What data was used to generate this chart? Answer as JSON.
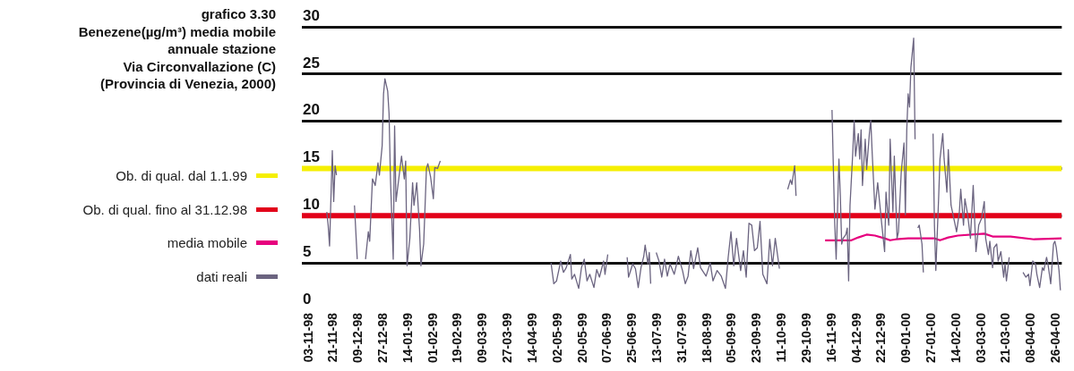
{
  "chart_data": {
    "type": "line",
    "title": "grafico 3.30",
    "subtitle": "Benezene(µg/m³) media mobile\nannuale stazione\nVia Circonvallazione (C)\n(Provincia di Venezia, 2000)",
    "xlim": [
      "1998-10-29",
      "2000-04-30"
    ],
    "xticks": [
      {
        "value": "1998-11-03",
        "label": "03-11-98"
      },
      {
        "value": "1998-11-21",
        "label": "21-11-98"
      },
      {
        "value": "1998-12-09",
        "label": "09-12-98"
      },
      {
        "value": "1998-12-27",
        "label": "27-12-98"
      },
      {
        "value": "1999-01-14",
        "label": "14-01-99"
      },
      {
        "value": "1999-02-01",
        "label": "01-02-99"
      },
      {
        "value": "1999-02-19",
        "label": "19-02-99"
      },
      {
        "value": "1999-03-09",
        "label": "09-03-99"
      },
      {
        "value": "1999-03-27",
        "label": "27-03-99"
      },
      {
        "value": "1999-04-14",
        "label": "14-04-99"
      },
      {
        "value": "1999-05-02",
        "label": "02-05-99"
      },
      {
        "value": "1999-05-20",
        "label": "20-05-99"
      },
      {
        "value": "1999-06-07",
        "label": "07-06-99"
      },
      {
        "value": "1999-06-25",
        "label": "25-06-99"
      },
      {
        "value": "1999-07-13",
        "label": "13-07-99"
      },
      {
        "value": "1999-07-31",
        "label": "31-07-99"
      },
      {
        "value": "1999-08-18",
        "label": "18-08-99"
      },
      {
        "value": "1999-09-05",
        "label": "05-09-99"
      },
      {
        "value": "1999-09-23",
        "label": "23-09-99"
      },
      {
        "value": "1999-10-11",
        "label": "11-10-99"
      },
      {
        "value": "1999-10-29",
        "label": "29-10-99"
      },
      {
        "value": "1999-11-16",
        "label": "16-11-99"
      },
      {
        "value": "1999-12-04",
        "label": "04-12-99"
      },
      {
        "value": "1999-12-22",
        "label": "22-12-99"
      },
      {
        "value": "2000-01-09",
        "label": "09-01-00"
      },
      {
        "value": "2000-01-27",
        "label": "27-01-00"
      },
      {
        "value": "2000-02-14",
        "label": "14-02-00"
      },
      {
        "value": "2000-03-03",
        "label": "03-03-00"
      },
      {
        "value": "2000-03-21",
        "label": "21-03-00"
      },
      {
        "value": "2000-04-08",
        "label": "08-04-00"
      },
      {
        "value": "2000-04-26",
        "label": "26-04-00"
      }
    ],
    "ylim": [
      0,
      30
    ],
    "yticks": [
      0,
      5,
      10,
      15,
      20,
      25,
      30
    ],
    "grid": "y",
    "legend": "left",
    "series": [
      {
        "name": "Ob. di qual. dal 1.1.99",
        "color": "#f5ef00",
        "x": [
          "1998-10-29",
          "2000-04-30"
        ],
        "values": [
          15,
          15
        ]
      },
      {
        "name": "Ob. di qual. fino al 31.12.98",
        "color": "#e2001a",
        "x": [
          "1998-10-29",
          "2000-04-30"
        ],
        "values": [
          10,
          10
        ]
      },
      {
        "name": "media mobile",
        "color": "#e6007e",
        "x": [
          "1999-11-11",
          "1999-11-30",
          "1999-12-05",
          "1999-12-11",
          "1999-12-17",
          "1999-12-24",
          "1999-12-28",
          "2000-01-01",
          "2000-01-10",
          "2000-01-29",
          "2000-02-02",
          "2000-02-08",
          "2000-02-15",
          "2000-03-05",
          "2000-03-11",
          "2000-03-24",
          "2000-04-10",
          "2000-04-30"
        ],
        "values": [
          7.4,
          7.4,
          7.7,
          8.0,
          7.9,
          7.6,
          7.4,
          7.5,
          7.6,
          7.6,
          7.4,
          7.7,
          7.9,
          8.1,
          7.8,
          7.8,
          7.5,
          7.6
        ]
      },
      {
        "name": "dati reali",
        "color": "#6b6480",
        "x": [
          "1998-11-16",
          "1998-11-17",
          "1998-11-18",
          "1998-11-20",
          "1998-11-21",
          "1998-11-22",
          "1998-11-23",
          "1998-11-27",
          "1998-12-06",
          "1998-12-08",
          "1998-12-11",
          "1998-12-14",
          "1998-12-16",
          "1998-12-17",
          "1998-12-19",
          "1998-12-21",
          "1998-12-23",
          "1998-12-24",
          "1998-12-26",
          "1998-12-27",
          "1998-12-28",
          "1998-12-30",
          "1998-12-31",
          "1999-01-01",
          "1999-01-03",
          "1999-01-04",
          "1999-01-05",
          "1999-01-07",
          "1999-01-09",
          "1999-01-11",
          "1999-01-12",
          "1999-01-13",
          "1999-01-15",
          "1999-01-17",
          "1999-01-18",
          "1999-01-20",
          "1999-01-22",
          "1999-01-23",
          "1999-01-25",
          "1999-01-27",
          "1999-01-28",
          "1999-01-30",
          "1999-02-01",
          "1999-02-02",
          "1999-02-04",
          "1999-02-06",
          "1999-03-13",
          "1999-04-27",
          "1999-04-29",
          "1999-05-01",
          "1999-05-04",
          "1999-05-06",
          "1999-05-08",
          "1999-05-11",
          "1999-05-12",
          "1999-05-14",
          "1999-05-17",
          "1999-05-19",
          "1999-05-21",
          "1999-05-23",
          "1999-05-25",
          "1999-05-28",
          "1999-05-30",
          "1999-06-01",
          "1999-06-04",
          "1999-06-05",
          "1999-06-07",
          "1999-06-11",
          "1999-06-21",
          "1999-06-22",
          "1999-06-25",
          "1999-06-27",
          "1999-06-29",
          "1999-07-01",
          "1999-07-03",
          "1999-07-04",
          "1999-07-06",
          "1999-07-07",
          "1999-07-08",
          "1999-07-10",
          "1999-07-12",
          "1999-07-14",
          "1999-07-16",
          "1999-07-18",
          "1999-07-20",
          "1999-07-22",
          "1999-07-25",
          "1999-07-28",
          "1999-07-31",
          "1999-08-02",
          "1999-08-04",
          "1999-08-06",
          "1999-08-08",
          "1999-08-11",
          "1999-08-13",
          "1999-08-17",
          "1999-08-20",
          "1999-08-22",
          "1999-08-25",
          "1999-08-28",
          "1999-08-31",
          "1999-09-02",
          "1999-09-04",
          "1999-09-06",
          "1999-09-08",
          "1999-09-11",
          "1999-09-13",
          "1999-09-15",
          "1999-09-17",
          "1999-09-19",
          "1999-09-21",
          "1999-09-23",
          "1999-09-25",
          "1999-09-27",
          "1999-09-30",
          "1999-10-02",
          "1999-10-04",
          "1999-10-06",
          "1999-10-09",
          "1999-10-12",
          "1999-10-15",
          "1999-10-17",
          "1999-10-18",
          "1999-10-20",
          "1999-10-21",
          "1999-10-25",
          "1999-11-16",
          "1999-11-17",
          "1999-11-18",
          "1999-11-19",
          "1999-11-21",
          "1999-11-22",
          "1999-11-23",
          "1999-11-24",
          "1999-11-26",
          "1999-11-27",
          "1999-11-28",
          "1999-11-29",
          "1999-12-01",
          "1999-12-02",
          "1999-12-03",
          "1999-12-05",
          "1999-12-06",
          "1999-12-07",
          "1999-12-08",
          "1999-12-10",
          "1999-12-11",
          "1999-12-13",
          "1999-12-14",
          "1999-12-15",
          "1999-12-17",
          "1999-12-18",
          "1999-12-19",
          "1999-12-22",
          "1999-12-24",
          "1999-12-25",
          "1999-12-27",
          "1999-12-28",
          "1999-12-30",
          "1999-12-31",
          "2000-01-02",
          "2000-01-03",
          "2000-01-05",
          "2000-01-07",
          "2000-01-08",
          "2000-01-09",
          "2000-01-10",
          "2000-01-11",
          "2000-01-12",
          "2000-01-14",
          "2000-01-15",
          "2000-01-16",
          "2000-01-17",
          "2000-01-18",
          "2000-01-20",
          "2000-01-21",
          "2000-01-25",
          "2000-01-28",
          "2000-01-29",
          "2000-01-30",
          "2000-02-01",
          "2000-02-02",
          "2000-02-04",
          "2000-02-05",
          "2000-02-07",
          "2000-02-08",
          "2000-02-10",
          "2000-02-12",
          "2000-02-14",
          "2000-02-16",
          "2000-02-17",
          "2000-02-19",
          "2000-02-20",
          "2000-02-22",
          "2000-02-24",
          "2000-02-26",
          "2000-02-28",
          "2000-03-01",
          "2000-03-03",
          "2000-03-05",
          "2000-03-06",
          "2000-03-08",
          "2000-03-09",
          "2000-03-11",
          "2000-03-12",
          "2000-03-14",
          "2000-03-15",
          "2000-03-17",
          "2000-03-19",
          "2000-03-20",
          "2000-03-21",
          "2000-03-23",
          "2000-03-27",
          "2000-04-02",
          "2000-04-04",
          "2000-04-06",
          "2000-04-07",
          "2000-04-09",
          "2000-04-11",
          "2000-04-12",
          "2000-04-14",
          "2000-04-16",
          "2000-04-17",
          "2000-04-19",
          "2000-04-20",
          "2000-04-22",
          "2000-04-24",
          "2000-04-25",
          "2000-04-26",
          "2000-04-28",
          "2000-04-29"
        ],
        "values": [
          10.4,
          9.0,
          6.8,
          16.9,
          11.5,
          15.3,
          14.3,
          null,
          11.1,
          5.4,
          null,
          5.4,
          8.3,
          7.3,
          13.9,
          13.2,
          15.6,
          14.3,
          17.4,
          22.9,
          24.5,
          23.2,
          20.8,
          13.9,
          5.4,
          19.5,
          11.5,
          13.9,
          16.3,
          13.9,
          15.8,
          4.7,
          7.6,
          13.5,
          11.1,
          13.5,
          8.6,
          4.7,
          7.0,
          15.0,
          15.5,
          14.1,
          11.8,
          15.1,
          15.0,
          15.8,
          null,
          5.0,
          2.8,
          3.1,
          5.2,
          4.0,
          4.5,
          5.9,
          3.3,
          3.8,
          2.3,
          4.5,
          5.4,
          3.1,
          3.8,
          2.4,
          4.3,
          3.5,
          5.2,
          3.8,
          5.9,
          null,
          5.6,
          3.5,
          4.9,
          4.4,
          2.4,
          4.5,
          5.7,
          6.9,
          4.9,
          6.1,
          2.8,
          null,
          6.1,
          5.2,
          3.5,
          5.4,
          3.6,
          4.9,
          3.8,
          5.7,
          4.2,
          2.8,
          3.6,
          6.3,
          4.4,
          6.6,
          4.5,
          3.6,
          5.0,
          3.1,
          4.2,
          3.6,
          2.3,
          5.6,
          8.3,
          4.7,
          7.6,
          4.2,
          6.3,
          3.5,
          9.2,
          9.0,
          6.3,
          6.6,
          9.4,
          3.8,
          2.8,
          7.5,
          4.7,
          7.6,
          4.4,
          null,
          12.8,
          13.8,
          13.3,
          15.3,
          12.1,
          null,
          21.2,
          14.9,
          9.0,
          5.4,
          16.0,
          12.1,
          7.0,
          7.6,
          8.0,
          8.7,
          3.1,
          11.1,
          16.7,
          20.1,
          16.3,
          18.7,
          16.0,
          19.1,
          13.2,
          18.1,
          14.9,
          18.7,
          20.1,
          16.7,
          10.7,
          12.1,
          13.5,
          9.0,
          6.2,
          12.5,
          9.0,
          18.1,
          10.4,
          16.3,
          7.6,
          8.3,
          14.6,
          17.7,
          10.1,
          19.1,
          22.9,
          21.5,
          25.7,
          28.8,
          18.1,
          null,
          8.7,
          9.0,
          7.0,
          4.0,
          null,
          18.7,
          9.0,
          4.2,
          11.8,
          16.0,
          18.7,
          16.0,
          12.5,
          17.0,
          11.1,
          9.7,
          8.3,
          10.4,
          12.8,
          9.0,
          11.8,
          10.1,
          7.6,
          13.2,
          6.2,
          9.0,
          9.7,
          11.5,
          7.6,
          5.9,
          7.3,
          4.5,
          6.6,
          7.0,
          5.2,
          6.2,
          3.5,
          4.9,
          3.1,
          5.6,
          null,
          4.0,
          3.5,
          3.8,
          2.6,
          5.2,
          4.9,
          3.8,
          2.4,
          4.5,
          4.2,
          5.6,
          4.9,
          2.8,
          7.0,
          7.3,
          6.6,
          4.2,
          2.1
        ]
      }
    ]
  }
}
